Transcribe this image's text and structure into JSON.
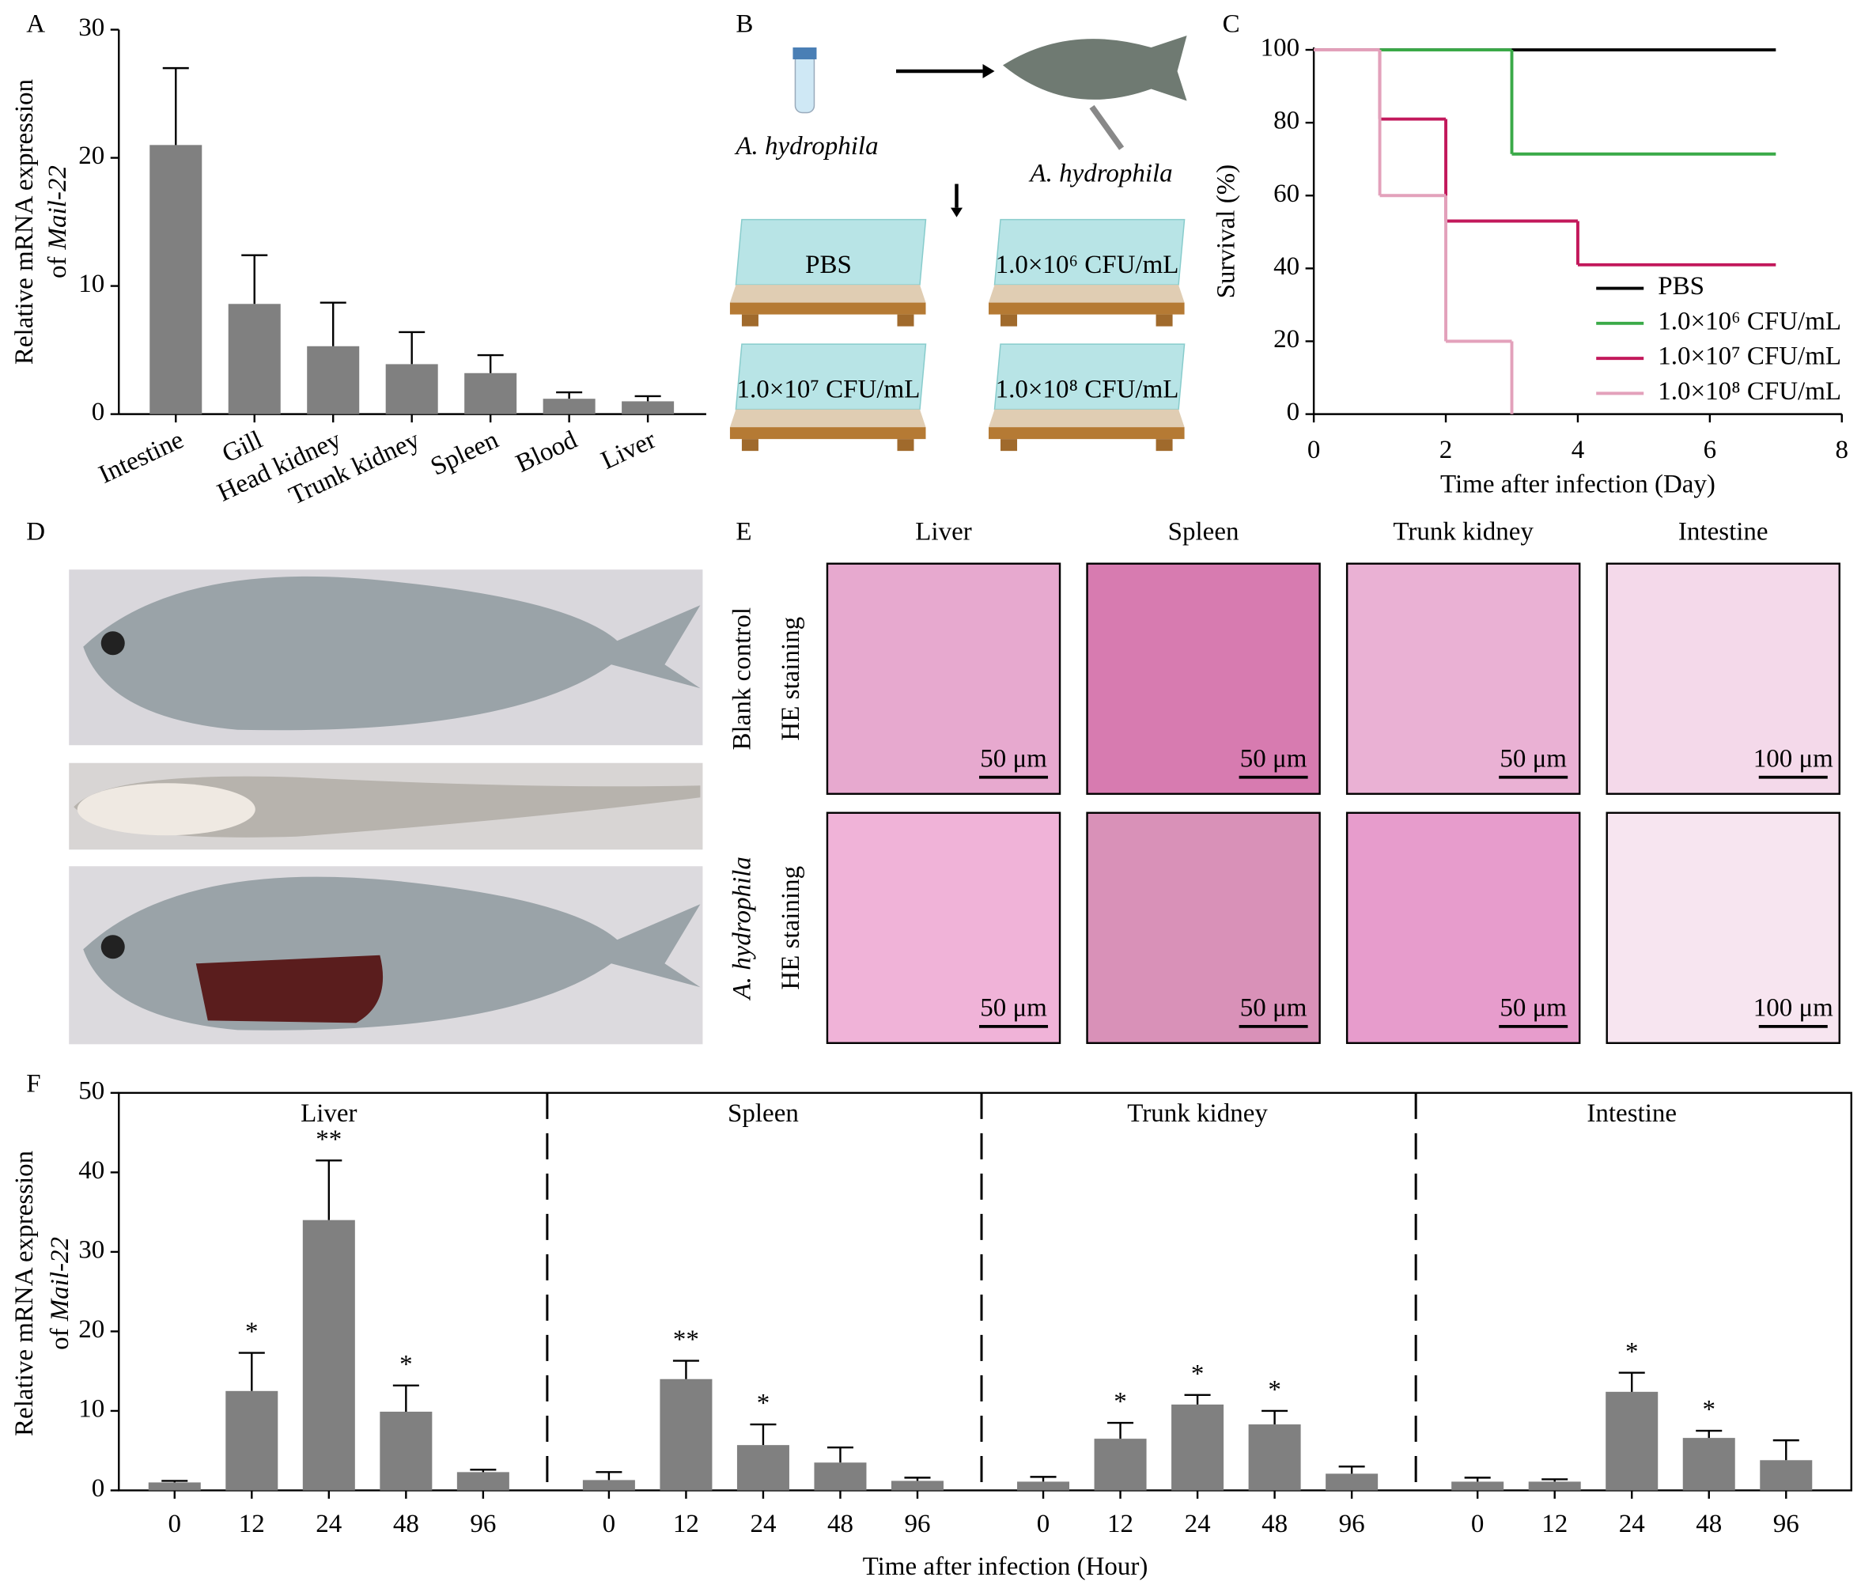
{
  "panel_labels": [
    "A",
    "B",
    "C",
    "D",
    "E",
    "F"
  ],
  "chart_data": [
    {
      "type": "bar",
      "y_label": "Relative mRNA expression",
      "y_label_prefix": "of",
      "y_label_gene": "Mail-22",
      "categories": [
        "Intestine",
        "Gill",
        "Head kidney",
        "Trunk kidney",
        "Spleen",
        "Blood",
        "Liver"
      ],
      "values": [
        21,
        8.6,
        5.3,
        3.9,
        3.2,
        1.2,
        1.0
      ],
      "errors": [
        6,
        3.8,
        3.4,
        2.5,
        1.4,
        0.5,
        0.4
      ],
      "color": "#808080",
      "ylim": [
        0,
        30
      ],
      "yticks": [
        0,
        10,
        20,
        30
      ]
    },
    {
      "type": "step",
      "x_label": "Time after infection (Day)",
      "y_label": "Survival (%)",
      "xlim": [
        0,
        8
      ],
      "xticks": [
        0,
        2,
        4,
        6,
        8
      ],
      "ylim": [
        0,
        100
      ],
      "yticks": [
        0,
        20,
        40,
        60,
        80,
        100
      ],
      "legend": "lower right",
      "series": [
        {
          "name": "PBS",
          "color": "#000000",
          "x": [
            0,
            7
          ],
          "values": [
            100,
            100
          ]
        },
        {
          "name": "1.0×10⁶ CFU/mL",
          "color": "#3aaa48",
          "x": [
            0,
            3,
            7
          ],
          "values": [
            100,
            71.4,
            71.4
          ]
        },
        {
          "name": "1.0×10⁷ CFU/mL",
          "color": "#c2185b",
          "x": [
            0,
            1,
            2,
            4,
            7
          ],
          "values": [
            100,
            81,
            53,
            41,
            41
          ]
        },
        {
          "name": "1.0×10⁸ CFU/mL",
          "color": "#e3a1bb",
          "x": [
            0,
            1,
            2,
            3
          ],
          "values": [
            100,
            60,
            20,
            0
          ]
        }
      ]
    },
    {
      "type": "grouped_bar",
      "x_label": "Time after infection (Hour)",
      "y_label": "Relative mRNA expression",
      "y_label_prefix": "of",
      "y_label_gene": "Mail-22",
      "categories": [
        "0",
        "12",
        "24",
        "48",
        "96"
      ],
      "color": "#808080",
      "ylim": [
        0,
        50
      ],
      "yticks": [
        0,
        10,
        20,
        30,
        40,
        50
      ],
      "series": [
        {
          "name": "Liver",
          "values": [
            1.0,
            12.5,
            34,
            9.9,
            2.3
          ],
          "errors": [
            0.2,
            4.8,
            7.5,
            3.3,
            0.3
          ],
          "significance": [
            null,
            "*",
            "**",
            "*",
            null
          ]
        },
        {
          "name": "Spleen",
          "values": [
            1.3,
            14,
            5.7,
            3.5,
            1.2
          ],
          "errors": [
            1.0,
            2.3,
            2.6,
            1.9,
            0.4
          ],
          "significance": [
            null,
            "**",
            "*",
            null,
            null
          ]
        },
        {
          "name": "Trunk kidney",
          "values": [
            1.1,
            6.5,
            10.8,
            8.3,
            2.1
          ],
          "errors": [
            0.6,
            2.0,
            1.2,
            1.7,
            0.9
          ],
          "significance": [
            null,
            "*",
            "*",
            "*",
            null
          ]
        },
        {
          "name": "Intestine",
          "values": [
            1.1,
            1.1,
            12.4,
            6.6,
            3.8
          ],
          "errors": [
            0.5,
            0.3,
            2.4,
            0.9,
            2.5
          ],
          "significance": [
            null,
            null,
            "*",
            "*",
            null
          ]
        }
      ]
    }
  ],
  "panel_b": {
    "source": "A. hydrophila",
    "injected": "A. hydrophila",
    "tanks": [
      "PBS",
      "1.0×10⁶ CFU/mL",
      "1.0×10⁷ CFU/mL",
      "1.0×10⁸ CFU/mL"
    ]
  },
  "panel_e": {
    "columns": [
      "Liver",
      "Spleen",
      "Trunk kidney",
      "Intestine"
    ],
    "rows": [
      {
        "label": "Blank control",
        "stain": "HE staining",
        "scale_bars": [
          "50 μm",
          "50 μm",
          "50 μm",
          "100 μm"
        ]
      },
      {
        "label": "A. hydrophila",
        "stain": "HE staining",
        "scale_bars": [
          "50 μm",
          "50 μm",
          "50 μm",
          "100 μm"
        ]
      }
    ]
  }
}
